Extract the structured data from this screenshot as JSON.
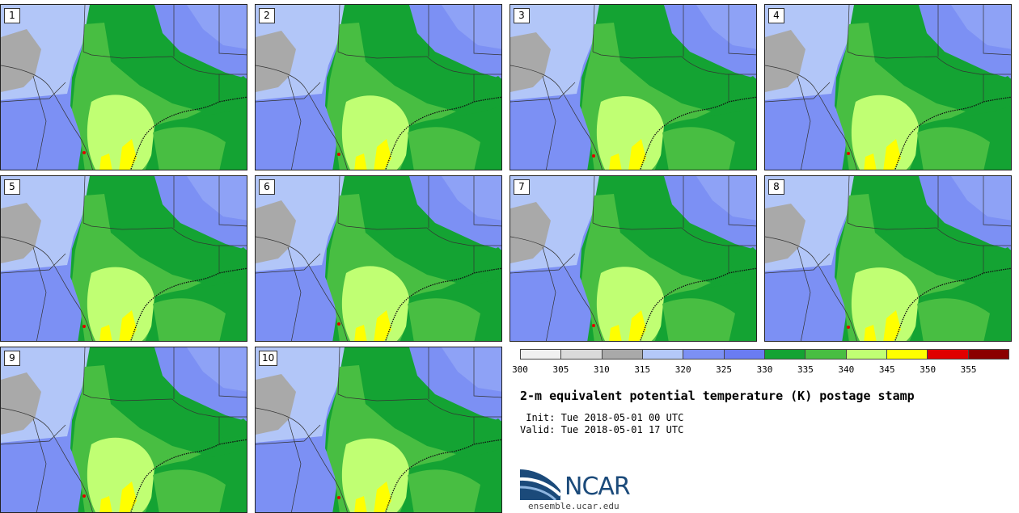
{
  "colors": {
    "gray": "#a9a9a9",
    "lightblue": "#b2c6f8",
    "blue": "#7c90f4",
    "darkgreen": "#14a333",
    "green": "#48be42",
    "lightgreen": "#c0ff73",
    "yellow": "#ffff00",
    "red": "#e00000"
  },
  "panels": [
    {
      "label": "1"
    },
    {
      "label": "2"
    },
    {
      "label": "3"
    },
    {
      "label": "4"
    },
    {
      "label": "5"
    },
    {
      "label": "6"
    },
    {
      "label": "7"
    },
    {
      "label": "8"
    },
    {
      "label": "9"
    },
    {
      "label": "10"
    }
  ],
  "colorbar": {
    "colors": [
      "#f0f0f0",
      "#dadada",
      "#a9a9a9",
      "#b4c8f8",
      "#7c90f4",
      "#6a7cf2",
      "#14a333",
      "#48be42",
      "#c0ff73",
      "#ffff00",
      "#e00000",
      "#8b0000"
    ],
    "ticks": [
      "300",
      "305",
      "310",
      "315",
      "320",
      "325",
      "330",
      "335",
      "340",
      "345",
      "350",
      "355"
    ]
  },
  "title": "2-m equivalent potential temperature (K) postage stamp",
  "init_text": " Init: Tue 2018-05-01 00 UTC",
  "valid_text": "Valid: Tue 2018-05-01 17 UTC",
  "logo": {
    "text": "NCAR",
    "url": "ensemble.ucar.edu"
  }
}
